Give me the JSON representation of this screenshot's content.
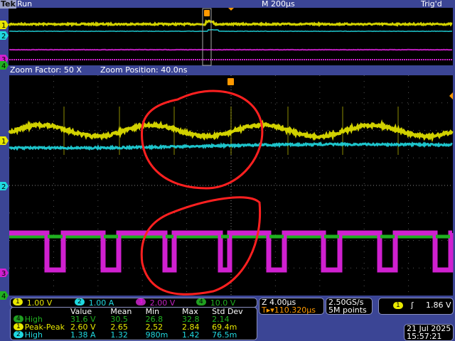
{
  "header": {
    "brand": "Tek",
    "state": "Run",
    "timebase": "M 200µs",
    "trigger_status": "Trig'd"
  },
  "zoom_info": {
    "factor": "Zoom Factor: 50 X",
    "position": "Zoom Position: 40.0ns"
  },
  "channels": [
    {
      "num": "1",
      "scale": "1.00 V",
      "color": "#e8e800"
    },
    {
      "num": "2",
      "scale": "1.00 A",
      "color": "#20d8e0"
    },
    {
      "num": "3",
      "scale": "2.00 V",
      "color": "#d020d0"
    },
    {
      "num": "4",
      "scale": "10.0 V",
      "color": "#20b020"
    }
  ],
  "measurements": {
    "headers": [
      "Value",
      "Mean",
      "Min",
      "Max",
      "Std Dev"
    ],
    "rows": [
      {
        "ch": "4",
        "name": "High",
        "value": "31.6 V",
        "mean": "30.5",
        "min": "26.8",
        "max": "32.8",
        "std": "2.14",
        "color": "#20b020"
      },
      {
        "ch": "1",
        "name": "Peak-Peak",
        "value": "2.60 V",
        "mean": "2.65",
        "min": "2.52",
        "max": "2.84",
        "std": "69.4m",
        "color": "#e8e800"
      },
      {
        "ch": "2",
        "name": "High",
        "value": "1.38 A",
        "mean": "1.32",
        "min": "980m",
        "max": "1.42",
        "std": "76.5m",
        "color": "#20d8e0"
      }
    ]
  },
  "zoom_timebase": {
    "scale": "Z 4.00µs",
    "trigger_pos": "110.320µs"
  },
  "acquisition": {
    "rate": "2.50GS/s",
    "length": "5M points"
  },
  "trigger": {
    "source": "1",
    "level": "1.86 V",
    "slope": "rising"
  },
  "datetime": {
    "date": "21 Jul  2025",
    "time": "15:57:21"
  },
  "colors": {
    "background": "#3b4595",
    "annotation": "#ff2020",
    "trigger_marker": "#ff9900"
  }
}
